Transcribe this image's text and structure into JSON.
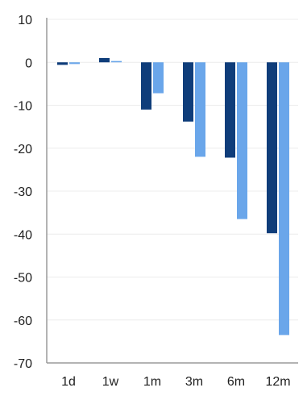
{
  "chart_data": {
    "type": "bar",
    "categories": [
      "1d",
      "1w",
      "1m",
      "3m",
      "6m",
      "12m"
    ],
    "series": [
      {
        "values": [
          -0.6,
          1.0,
          -11.0,
          -13.8,
          -22.2,
          -39.8
        ],
        "color": "#0f3d7a"
      },
      {
        "values": [
          -0.4,
          0.3,
          -7.2,
          -22.0,
          -36.5,
          -63.5
        ],
        "color": "#6aa6ea"
      }
    ],
    "ylim": [
      -70,
      10
    ],
    "yticks": [
      10,
      0,
      -10,
      -20,
      -30,
      -40,
      -50,
      -60,
      -70
    ],
    "grid": true,
    "gridColor": "#ececec",
    "axisColor": "#9a9a9a",
    "title": "",
    "xlabel": "",
    "ylabel": ""
  }
}
